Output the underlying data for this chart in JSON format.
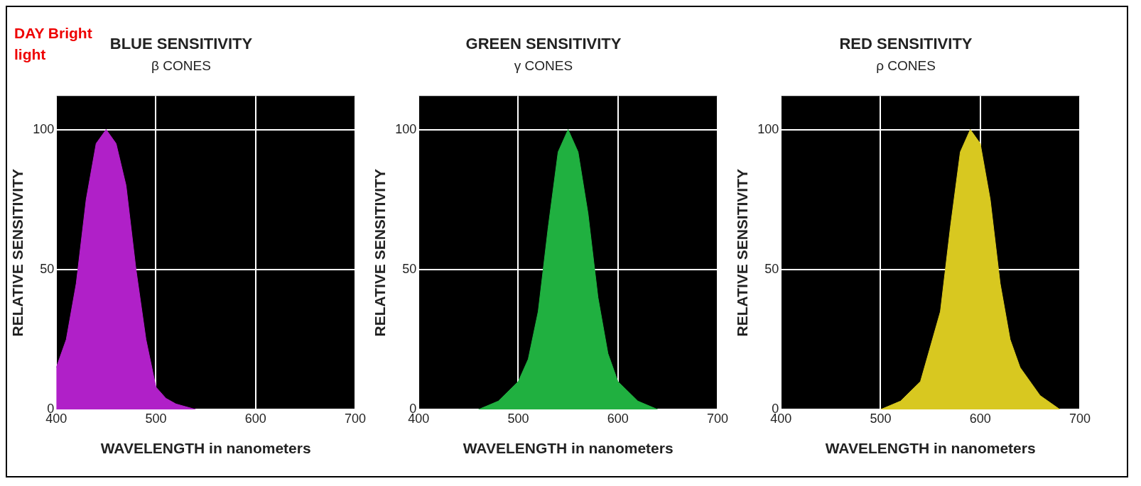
{
  "chart_data": [
    {
      "type": "area",
      "title": "BLUE SENSITIVITY",
      "subtitle": "β CONES",
      "xlabel": "WAVELENGTH in nanometers",
      "ylabel": "RELATIVE SENSITIVITY",
      "annotations": [
        "DAY Bright light"
      ],
      "x": [
        400,
        410,
        420,
        430,
        440,
        450,
        460,
        470,
        480,
        490,
        500,
        510,
        520,
        530,
        540
      ],
      "series": [
        {
          "color": "#b020c8",
          "values": [
            15,
            25,
            45,
            75,
            95,
            100,
            95,
            80,
            50,
            25,
            8,
            4,
            2,
            1,
            0
          ]
        }
      ],
      "xlim": [
        400,
        700
      ],
      "xticks": [
        400,
        500,
        600,
        700
      ],
      "ylim": [
        0,
        112
      ],
      "yticks": [
        0,
        50,
        100
      ],
      "grid": true
    },
    {
      "type": "area",
      "title": "GREEN SENSITIVITY",
      "subtitle": "γ CONES",
      "xlabel": "WAVELENGTH in nanometers",
      "ylabel": "RELATIVE SENSITIVITY",
      "x": [
        460,
        480,
        500,
        510,
        520,
        530,
        540,
        550,
        560,
        570,
        580,
        590,
        600,
        620,
        640
      ],
      "series": [
        {
          "color": "#20b040",
          "values": [
            0,
            3,
            10,
            18,
            35,
            65,
            92,
            100,
            92,
            70,
            40,
            20,
            10,
            3,
            0
          ]
        }
      ],
      "xlim": [
        400,
        700
      ],
      "xticks": [
        400,
        500,
        600,
        700
      ],
      "ylim": [
        0,
        112
      ],
      "yticks": [
        0,
        50,
        100
      ],
      "grid": true
    },
    {
      "type": "area",
      "title": "RED SENSITIVITY",
      "subtitle": "ρ CONES",
      "xlabel": "WAVELENGTH in nanometers",
      "ylabel": "RELATIVE SENSITIVITY",
      "x": [
        500,
        520,
        540,
        560,
        570,
        580,
        590,
        600,
        610,
        620,
        630,
        640,
        660,
        680
      ],
      "series": [
        {
          "color": "#d8c820",
          "values": [
            0,
            3,
            10,
            35,
            65,
            92,
            100,
            95,
            75,
            45,
            25,
            15,
            5,
            0
          ]
        }
      ],
      "xlim": [
        400,
        700
      ],
      "xticks": [
        400,
        500,
        600,
        700
      ],
      "ylim": [
        0,
        112
      ],
      "yticks": [
        0,
        50,
        100
      ],
      "grid": true
    }
  ]
}
